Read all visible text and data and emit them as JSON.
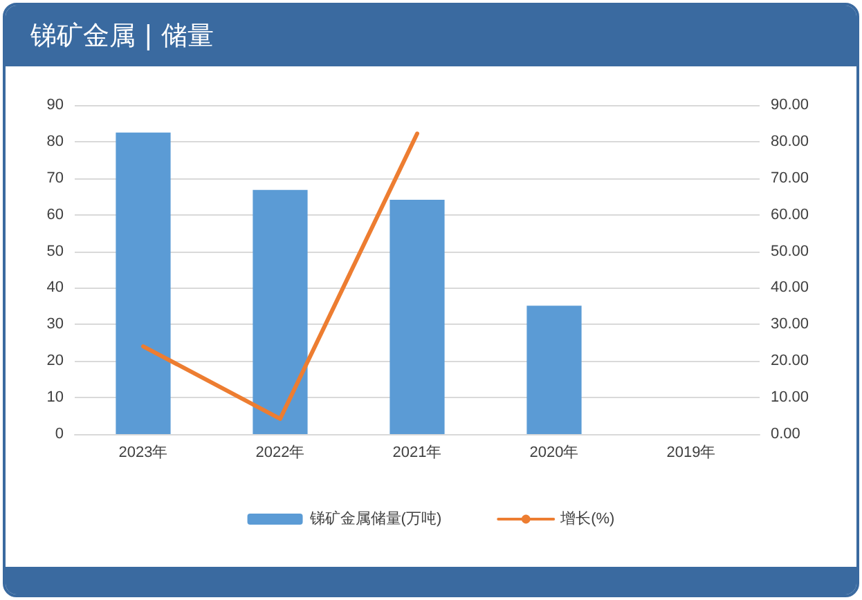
{
  "chart_data": {
    "type": "bar",
    "title": "锑矿金属 | 储量",
    "categories": [
      "2023年",
      "2022年",
      "2021年",
      "2020年",
      "2019年"
    ],
    "series": [
      {
        "name": "锑矿金属储量(万吨)",
        "color": "#5b9bd5",
        "values": [
          82.5,
          66.8,
          64.1,
          35.1,
          null
        ]
      },
      {
        "name": "增长(%)",
        "type": "line",
        "axis": "y2",
        "color": "#ed7d31",
        "values": [
          24.0,
          4.2,
          82.2,
          null,
          null
        ]
      }
    ],
    "ylim": [
      0,
      90
    ],
    "yticks": [
      0,
      10,
      20,
      30,
      40,
      50,
      60,
      70,
      80,
      90
    ],
    "y2lim": [
      0,
      90
    ],
    "y2ticks": [
      {
        "value": 0,
        "label": "0.00"
      },
      {
        "value": 10,
        "label": "10.00"
      },
      {
        "value": 20,
        "label": "20.00"
      },
      {
        "value": 30,
        "label": "30.00"
      },
      {
        "value": 40,
        "label": "40.00"
      },
      {
        "value": 50,
        "label": "50.00"
      },
      {
        "value": 60,
        "label": "60.00"
      },
      {
        "value": 70,
        "label": "70.00"
      },
      {
        "value": 80,
        "label": "80.00"
      },
      {
        "value": 90,
        "label": "90.00"
      }
    ],
    "grid": "y",
    "legend": "bottom",
    "marker": "none",
    "line_style": "solid"
  }
}
